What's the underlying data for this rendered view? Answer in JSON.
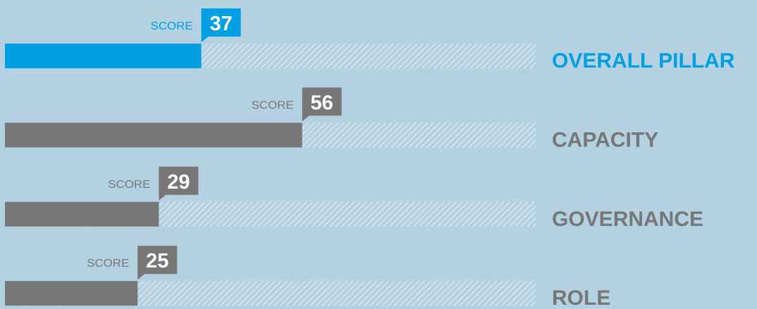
{
  "chart_data": {
    "type": "bar",
    "categories": [
      "OVERALL PILLAR",
      "CAPACITY",
      "GOVERNANCE",
      "ROLE"
    ],
    "values": [
      37,
      56,
      29,
      25
    ],
    "score_label": "SCORE",
    "colors": [
      "#009fe3",
      "#777777",
      "#777777",
      "#777777"
    ],
    "xlim": [
      0,
      100
    ]
  }
}
